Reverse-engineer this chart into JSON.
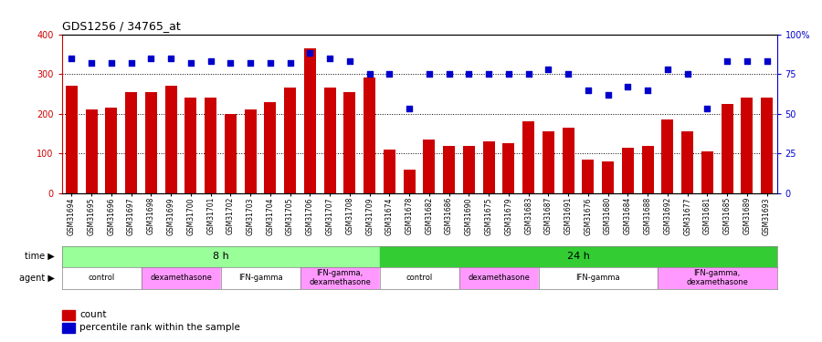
{
  "title": "GDS1256 / 34765_at",
  "samples": [
    "GSM31694",
    "GSM31695",
    "GSM31696",
    "GSM31697",
    "GSM31698",
    "GSM31699",
    "GSM31700",
    "GSM31701",
    "GSM31702",
    "GSM31703",
    "GSM31704",
    "GSM31705",
    "GSM31706",
    "GSM31707",
    "GSM31708",
    "GSM31709",
    "GSM31674",
    "GSM31678",
    "GSM31682",
    "GSM31686",
    "GSM31690",
    "GSM31675",
    "GSM31679",
    "GSM31683",
    "GSM31687",
    "GSM31691",
    "GSM31676",
    "GSM31680",
    "GSM31684",
    "GSM31688",
    "GSM31692",
    "GSM31677",
    "GSM31681",
    "GSM31685",
    "GSM31689",
    "GSM31693"
  ],
  "counts": [
    270,
    210,
    215,
    255,
    255,
    270,
    240,
    240,
    200,
    210,
    230,
    265,
    365,
    265,
    255,
    290,
    110,
    60,
    135,
    120,
    120,
    130,
    125,
    180,
    155,
    165,
    85,
    80,
    115,
    120,
    185,
    155,
    105,
    225,
    240,
    240
  ],
  "percentile_ranks": [
    85,
    82,
    82,
    82,
    85,
    85,
    82,
    83,
    82,
    82,
    82,
    82,
    88,
    85,
    83,
    75,
    75,
    53,
    75,
    75,
    75,
    75,
    75,
    75,
    78,
    75,
    65,
    62,
    67,
    65,
    78,
    75,
    53,
    83,
    83,
    83
  ],
  "bar_color": "#cc0000",
  "dot_color": "#0000cc",
  "left_ylim": [
    0,
    400
  ],
  "right_ylim": [
    0,
    100
  ],
  "left_yticks": [
    0,
    100,
    200,
    300,
    400
  ],
  "right_yticks": [
    0,
    25,
    50,
    75,
    100
  ],
  "right_yticklabels": [
    "0",
    "25",
    "50",
    "75",
    "100%"
  ],
  "hlines": [
    100,
    200,
    300
  ],
  "time_labels": [
    "8 h",
    "24 h"
  ],
  "n_8h": 16,
  "n_total": 36,
  "agent_groups": [
    {
      "label": "control",
      "start": 0,
      "end": 4,
      "color": "#ffffff"
    },
    {
      "label": "dexamethasone",
      "start": 4,
      "end": 8,
      "color": "#ff99ff"
    },
    {
      "label": "IFN-gamma",
      "start": 8,
      "end": 12,
      "color": "#ffffff"
    },
    {
      "label": "IFN-gamma,\ndexamethasone",
      "start": 12,
      "end": 16,
      "color": "#ff99ff"
    },
    {
      "label": "control",
      "start": 16,
      "end": 20,
      "color": "#ffffff"
    },
    {
      "label": "dexamethasone",
      "start": 20,
      "end": 24,
      "color": "#ff99ff"
    },
    {
      "label": "IFN-gamma",
      "start": 24,
      "end": 30,
      "color": "#ffffff"
    },
    {
      "label": "IFN-gamma,\ndexamethasone",
      "start": 30,
      "end": 36,
      "color": "#ff99ff"
    }
  ],
  "time_color_8h": "#99ff99",
  "time_color_24h": "#33cc33",
  "bar_width": 0.6,
  "dot_size": 18
}
